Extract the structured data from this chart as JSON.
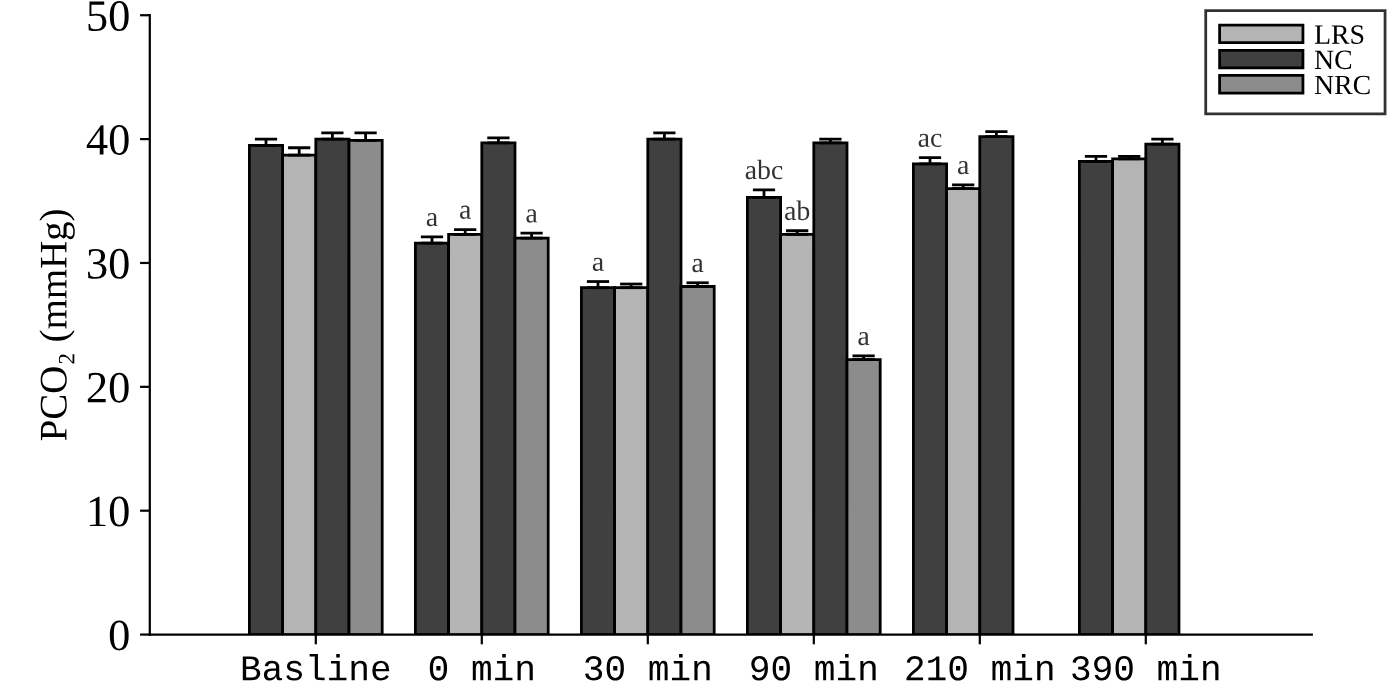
{
  "chart_data": {
    "type": "bar",
    "ylabel": "PCO₂ (mmHg)",
    "categories": [
      "Basline",
      "0 min",
      "30 min",
      "90 min",
      "210 min",
      "390 min"
    ],
    "series": [
      {
        "color": "#404040",
        "values": [
          39.5,
          31.6,
          28.0,
          35.3,
          38.0,
          38.2
        ],
        "errors": [
          0.5,
          0.5,
          0.5,
          0.6,
          0.5,
          0.4
        ]
      },
      {
        "name": "LRS",
        "color": "#b4b4b4",
        "values": [
          38.7,
          32.3,
          28.0,
          32.3,
          36.0,
          38.4
        ],
        "errors": [
          0.6,
          0.4,
          0.3,
          0.3,
          0.3,
          0.2
        ]
      },
      {
        "name": "NC",
        "color": "#404040",
        "values": [
          40.0,
          39.7,
          40.0,
          39.7,
          40.2,
          39.6
        ],
        "errors": [
          0.5,
          0.4,
          0.5,
          0.3,
          0.4,
          0.4
        ]
      },
      {
        "name": "NRC",
        "color": "#8c8c8c",
        "values": [
          39.9,
          32.0,
          28.1,
          22.2,
          null,
          null
        ],
        "errors": [
          0.6,
          0.4,
          0.3,
          0.3,
          null,
          null
        ]
      }
    ],
    "annotations": [
      {
        "text": "a",
        "x": "0 min",
        "y": 31.6
      },
      {
        "text": "a",
        "x": "0 min",
        "y": 32.3
      },
      {
        "text": "a",
        "x": "0 min",
        "y": 32.0
      },
      {
        "text": "a",
        "x": "30 min",
        "y": 28.0
      },
      {
        "text": "a",
        "x": "30 min",
        "y": 28.1
      },
      {
        "text": "abc",
        "x": "90 min",
        "y": 35.3
      },
      {
        "text": "ab",
        "x": "90 min",
        "y": 32.3
      },
      {
        "text": "a",
        "x": "90 min",
        "y": 22.2
      },
      {
        "text": "ac",
        "x": "210 min",
        "y": 38.0
      },
      {
        "text": "a",
        "x": "210 min",
        "y": 36.0
      }
    ],
    "ylim": [
      0,
      50
    ],
    "yticks": [
      0,
      10,
      20,
      30,
      40,
      50
    ],
    "grid": false,
    "legend": "top right"
  }
}
